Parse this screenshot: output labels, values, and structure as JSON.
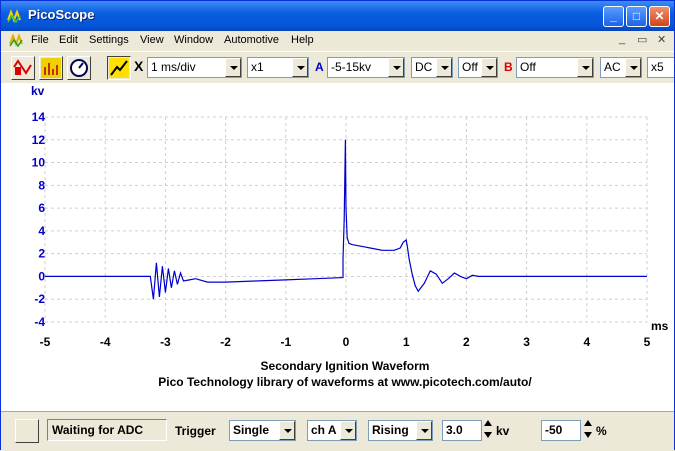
{
  "window": {
    "title": "PicoScope",
    "min_glyph": "_",
    "max_glyph": "□",
    "close_glyph": "✕"
  },
  "menu": {
    "items": [
      "File",
      "Edit",
      "Settings",
      "View",
      "Window",
      "Automotive",
      "Help"
    ],
    "mdi_min": "_",
    "mdi_restore": "▭",
    "mdi_close": "✕"
  },
  "toolbar": {
    "x_label": "X",
    "timebase": "1 ms/div",
    "x_zoom": "x1",
    "channel_a_letter": "A",
    "channel_a_range": "-5-15kv",
    "channel_a_coupling": "DC",
    "channel_a_option": "Off",
    "channel_b_letter": "B",
    "channel_b_range": "Off",
    "channel_b_coupling": "AC",
    "y_zoom": "x5",
    "colors": {
      "channel_a": "#0000cc",
      "channel_b": "#dd0000"
    }
  },
  "status": {
    "adc_state": "Waiting for ADC",
    "trigger_label": "Trigger",
    "trigger_mode": "Single",
    "trigger_channel": "ch A",
    "trigger_edge": "Rising",
    "trigger_level": "3.0",
    "trigger_level_unit": "kv",
    "pretrigger": "-50",
    "pretrigger_unit": "%"
  },
  "chart_data": {
    "type": "line",
    "title": "Secondary Ignition Waveform",
    "subtitle": "Pico Technology library of waveforms at www.picotech.com/auto/",
    "xlabel": "ms",
    "ylabel": "kv",
    "xlim": [
      -5,
      5
    ],
    "ylim": [
      -4,
      14
    ],
    "xticks": [
      -5,
      -4,
      -3,
      -2,
      -1,
      0,
      1,
      2,
      3,
      4,
      5
    ],
    "yticks": [
      14,
      12,
      10,
      8,
      6,
      4,
      2,
      0,
      -2,
      -4
    ],
    "grid": true,
    "series": [
      {
        "color": "#0000cc",
        "x": [
          -5,
          -3.25,
          -3.2,
          -3.15,
          -3.1,
          -3.05,
          -3.0,
          -2.95,
          -2.9,
          -2.85,
          -2.8,
          -2.75,
          -2.7,
          -2.6,
          -2.5,
          -2.3,
          -2.0,
          -1.5,
          -1.0,
          -0.5,
          -0.05,
          -0.05,
          -0.03,
          -0.02,
          -0.01,
          0.0,
          0.02,
          0.05,
          0.1,
          0.2,
          0.3,
          0.4,
          0.5,
          0.6,
          0.7,
          0.8,
          0.9,
          0.95,
          1.0,
          1.02,
          1.05,
          1.1,
          1.15,
          1.2,
          1.3,
          1.4,
          1.5,
          1.6,
          1.7,
          1.8,
          1.9,
          2.0,
          2.1,
          2.2,
          2.3,
          2.4,
          3.0,
          4.0,
          5.0
        ],
        "y": [
          0,
          0,
          -2.0,
          1.2,
          -1.8,
          0.9,
          -1.4,
          0.7,
          -1.0,
          0.5,
          -0.7,
          0.3,
          -0.4,
          -0.3,
          -0.2,
          -0.5,
          -0.5,
          -0.4,
          -0.3,
          -0.2,
          -0.1,
          1.5,
          5.0,
          8.5,
          12.0,
          6.0,
          3.4,
          2.9,
          2.8,
          2.7,
          2.6,
          2.5,
          2.4,
          2.3,
          2.3,
          2.3,
          2.5,
          3.0,
          3.2,
          2.6,
          1.5,
          0.2,
          -0.8,
          -1.3,
          -0.6,
          0.5,
          0.2,
          -0.6,
          -0.2,
          0.3,
          0.0,
          -0.2,
          0.1,
          0.0,
          0.0,
          0.0,
          0.0,
          0.0,
          0.0
        ]
      }
    ]
  }
}
